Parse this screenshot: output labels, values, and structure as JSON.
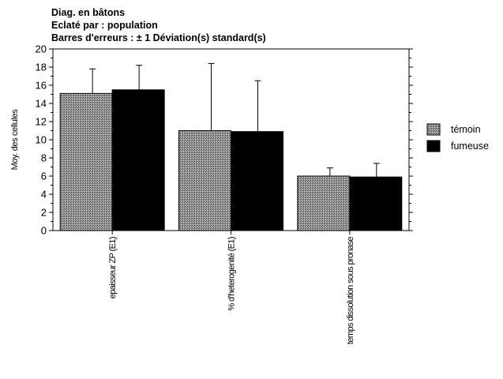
{
  "chart_data": {
    "type": "bar",
    "title_lines": [
      "Diag. en bâtons",
      "Eclaté par : population",
      "Barres d'erreurs : ± 1 Déviation(s) standard(s)"
    ],
    "xlabel": "",
    "ylabel": "Moy. des cellules",
    "ylim": [
      0,
      20
    ],
    "yticks": [
      0,
      2,
      4,
      6,
      8,
      10,
      12,
      14,
      16,
      18,
      20
    ],
    "categories": [
      "epaisseur ZP (E1)",
      "% d'heterogenité (E1)",
      "temps dissolution sous pronase"
    ],
    "series": [
      {
        "name": "témoin",
        "values": [
          15.1,
          11.0,
          6.0
        ],
        "errors": [
          2.7,
          7.4,
          0.9
        ],
        "color": "#8c8c8c"
      },
      {
        "name": "fumeuse",
        "values": [
          15.5,
          10.9,
          5.9
        ],
        "errors": [
          2.7,
          5.6,
          1.5
        ],
        "color": "#000000"
      }
    ],
    "legend_position": "right",
    "grid": false
  }
}
